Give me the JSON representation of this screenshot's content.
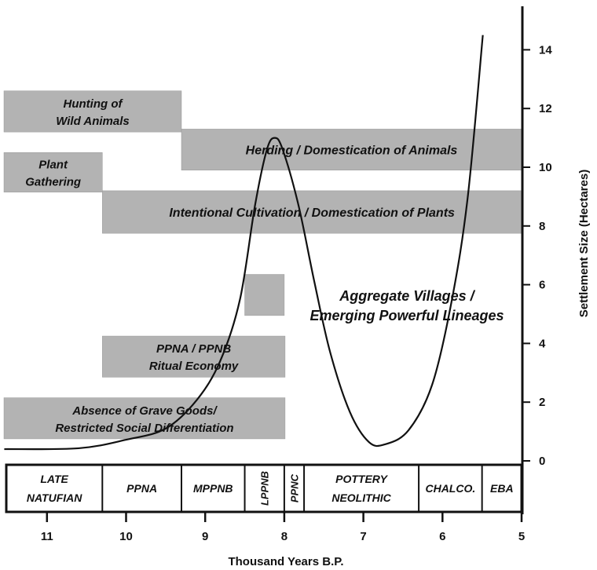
{
  "chart_data": {
    "type": "line",
    "title": "",
    "xlabel": "Thousand Years B.P.",
    "ylabel": "Settlement Size (Hectares)",
    "xlim": [
      11.55,
      5
    ],
    "ylim": [
      0,
      15
    ],
    "x_ticks": [
      "11",
      "10",
      "9",
      "8",
      "7",
      "6",
      "5"
    ],
    "x_tick_values": [
      11,
      10,
      9,
      8,
      7,
      6,
      5
    ],
    "y_ticks": [
      "0",
      "2",
      "4",
      "6",
      "8",
      "10",
      "12",
      "14"
    ],
    "y_tick_values": [
      0,
      2,
      4,
      6,
      8,
      10,
      12,
      14
    ],
    "grid": false,
    "series": [
      {
        "name": "Settlement size",
        "x": [
          11.54,
          10.6,
          10.0,
          9.5,
          9.11,
          8.81,
          8.56,
          8.37,
          8.22,
          8.12,
          8.02,
          7.82,
          7.62,
          7.42,
          7.17,
          6.93,
          6.73,
          6.43,
          6.13,
          5.88,
          5.68,
          5.49
        ],
        "y": [
          0.4,
          0.43,
          0.72,
          1.1,
          2.06,
          3.4,
          5.5,
          8.7,
          10.6,
          11.0,
          10.6,
          8.7,
          6.1,
          3.7,
          1.66,
          0.64,
          0.56,
          1.04,
          2.6,
          5.5,
          9.0,
          14.5
        ]
      }
    ],
    "periods": [
      {
        "label": [
          "LATE",
          "NATUFIAN"
        ],
        "start": 11.55,
        "end": 10.3
      },
      {
        "label": [
          "PPNA"
        ],
        "start": 10.3,
        "end": 9.3
      },
      {
        "label": [
          "MPPNB"
        ],
        "start": 9.3,
        "end": 8.5
      },
      {
        "label": [
          "LPPNB"
        ],
        "start": 8.5,
        "end": 8.0,
        "vertical": true
      },
      {
        "label": [
          "PPNC"
        ],
        "start": 8.0,
        "end": 7.75,
        "vertical": true
      },
      {
        "label": [
          "POTTERY",
          "NEOLITHIC"
        ],
        "start": 7.75,
        "end": 6.3
      },
      {
        "label": [
          "CHALCO."
        ],
        "start": 6.3,
        "end": 5.5
      },
      {
        "label": [
          "EBA"
        ],
        "start": 5.5,
        "end": 5.0
      }
    ],
    "bands": [
      {
        "label": [
          "Hunting of",
          "Wild Animals"
        ],
        "start": 11.55,
        "end": 9.3,
        "ymin": 11.2,
        "ymax": 12.6,
        "align": "left-center"
      },
      {
        "label": [
          "Herding / Domestication of Animals"
        ],
        "start": 9.3,
        "end": 5.0,
        "ymin": 9.9,
        "ymax": 11.3
      },
      {
        "label": [
          "Plant",
          "Gathering"
        ],
        "start": 11.55,
        "end": 10.3,
        "ymin": 9.15,
        "ymax": 10.5,
        "align": "left-center"
      },
      {
        "label": [
          "Intentional Cultivation / Domestication of Plants"
        ],
        "start": 10.3,
        "end": 5.0,
        "ymin": 7.75,
        "ymax": 9.2
      },
      {
        "label": [],
        "start": 8.5,
        "end": 8.0,
        "ymin": 4.95,
        "ymax": 6.35
      },
      {
        "label": [
          "PPNA / PPNB",
          "Ritual Economy"
        ],
        "start": 10.3,
        "end": 7.99,
        "ymin": 2.85,
        "ymax": 4.25
      },
      {
        "label": [
          "Absence of Grave Goods/",
          "Restricted Social Differentiation"
        ],
        "start": 11.55,
        "end": 7.99,
        "ymin": 0.75,
        "ymax": 2.15
      }
    ],
    "annotations": [
      {
        "label": [
          "Aggregate Villages /",
          "Emerging Powerful Lineages"
        ],
        "x": 6.45,
        "y": 5.45
      }
    ]
  },
  "colors": {
    "band": "#b3b3b3",
    "line": "#111111"
  }
}
